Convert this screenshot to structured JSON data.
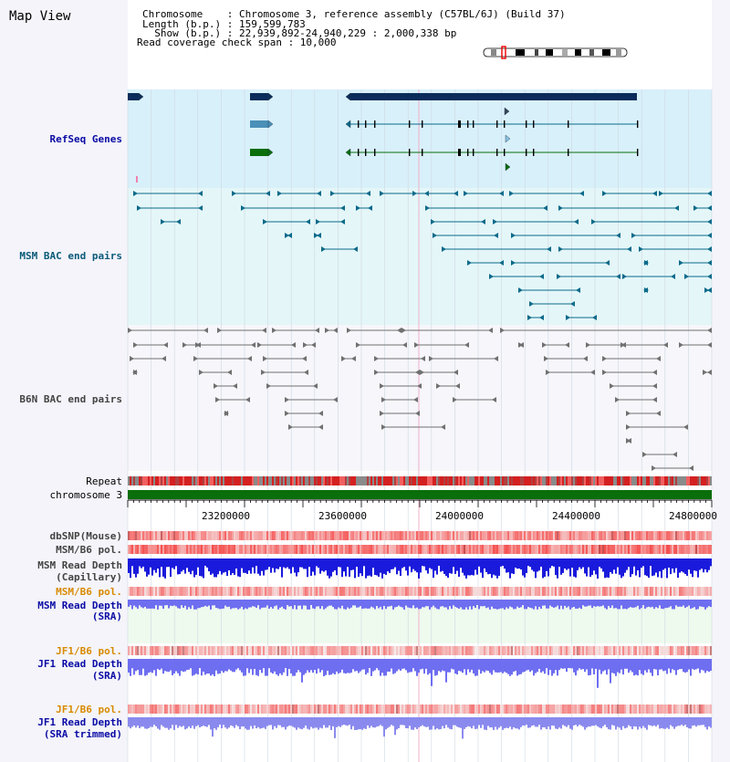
{
  "map_view_title": "Map View",
  "info_lines": [
    "Chromosome    : Chromosome 3, reference assembly (C57BL/6J) (Build 37)",
    "Length (b.p.) : 159,599,783",
    "  Show (b.p.) : 22,939,892-24,940,229 : 2,000,338 bp",
    "Read coverage check span : 10,000"
  ],
  "tracks": {
    "refseq": "RefSeq Genes",
    "msm_bac": "MSM BAC end pairs",
    "b6n_bac": "B6N BAC end pairs",
    "repeat": "Repeat",
    "chromosome": "chromosome 3",
    "dbsnp": "dbSNP(Mouse)",
    "msm_b6_pol_1": "MSM/B6 pol.",
    "msm_depth_cap_1": "MSM Read Depth",
    "msm_depth_cap_2": "(Capillary)",
    "msm_b6_pol_2": "MSM/B6 pol.",
    "msm_depth_sra_1": "MSM Read Depth",
    "msm_depth_sra_2": "(SRA)",
    "jf1_b6_pol_1": "JF1/B6 pol.",
    "jf1_depth_sra_1": "JF1 Read Depth",
    "jf1_depth_sra_2": "(SRA)",
    "jf1_b6_pol_2": "JF1/B6 pol.",
    "jf1_depth_trim_1": "JF1 Read Depth",
    "jf1_depth_trim_2": "(SRA trimmed)"
  },
  "axis_ticks": [
    "23200000",
    "23600000",
    "24000000",
    "24400000",
    "24800000"
  ],
  "colors": {
    "refseq_bg": "#d8f0fa",
    "msm_bac_bg": "#e4f6f8",
    "sra_bg": "#eefaee",
    "gene_navy": "#0b2c5a",
    "gene_steel": "#4a90b8",
    "gene_green": "#0a6e0a",
    "teal": "#0a6a8a",
    "gray": "#707070",
    "chromosome_green": "#0a6e0a",
    "depth_blue": "#1a1adc",
    "depth_light": "#8a8aee",
    "depth_mid": "#6e6ef0"
  }
}
